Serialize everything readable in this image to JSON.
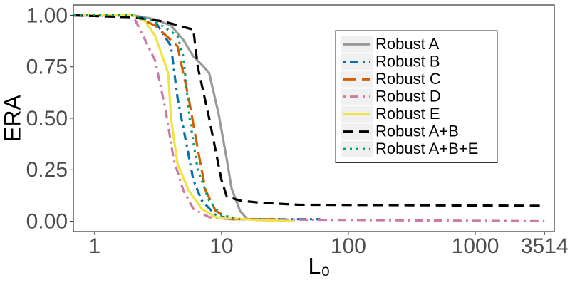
{
  "chart_data": {
    "type": "line",
    "ylabel": "ERA",
    "xlabel": "L₀",
    "xscale": "log",
    "xlim": [
      0.68,
      4200
    ],
    "ylim": [
      -0.05,
      1.05
    ],
    "xticks": [
      1,
      10,
      100,
      1000,
      3514
    ],
    "yticks": [
      {
        "value": 0,
        "label": "0.00"
      },
      {
        "value": 0.25,
        "label": "0.25"
      },
      {
        "value": 0.5,
        "label": "0.50"
      },
      {
        "value": 0.75,
        "label": "0.75"
      },
      {
        "value": 1,
        "label": "1.00"
      }
    ],
    "grid": false,
    "legend": "top-right",
    "series": [
      {
        "name": "Robust A",
        "color": "#999999",
        "dash": "solid",
        "x": [
          0.68,
          2,
          3,
          4,
          5,
          6,
          7,
          8,
          9.5,
          11,
          12,
          14,
          16,
          20
        ],
        "values": [
          1,
          1,
          0.98,
          0.95,
          0.88,
          0.8,
          0.76,
          0.72,
          0.52,
          0.3,
          0.16,
          0.05,
          0.01,
          0.01
        ]
      },
      {
        "name": "Robust B",
        "color": "#0072B2",
        "dash": "dotdash",
        "x": [
          0.68,
          2,
          3,
          4,
          4.5,
          5.2,
          6,
          7,
          9,
          12,
          60
        ],
        "values": [
          1,
          1,
          0.97,
          0.85,
          0.6,
          0.4,
          0.2,
          0.1,
          0.03,
          0.01,
          0.01
        ]
      },
      {
        "name": "Robust C",
        "color": "#D55E00",
        "dash": "longdash",
        "x": [
          0.68,
          2,
          3,
          4.5,
          5.5,
          6.5,
          7.5,
          9,
          12,
          30
        ],
        "values": [
          1,
          1,
          0.95,
          0.85,
          0.6,
          0.35,
          0.15,
          0.05,
          0.01,
          0.01
        ]
      },
      {
        "name": "Robust D",
        "color": "#CC79A7",
        "dash": "dotdash",
        "x": [
          0.68,
          2,
          2.5,
          3,
          3.6,
          4.2,
          5,
          6,
          8,
          12,
          3514
        ],
        "values": [
          1,
          1,
          0.88,
          0.78,
          0.55,
          0.3,
          0.15,
          0.06,
          0.02,
          0.01,
          0
        ]
      },
      {
        "name": "Robust E",
        "color": "#F0E442",
        "dash": "solid",
        "x": [
          0.68,
          2,
          2.5,
          3,
          3.8,
          4,
          4.5,
          5.5,
          7,
          9,
          20,
          37
        ],
        "values": [
          1,
          1,
          0.97,
          0.9,
          0.72,
          0.5,
          0.28,
          0.15,
          0.06,
          0.02,
          0.005,
          0
        ]
      },
      {
        "name": "Robust A+B",
        "color": "#000000",
        "dash": "dashed",
        "x": [
          0.68,
          2,
          3.5,
          6,
          6.5,
          8,
          10,
          11,
          14,
          20,
          40,
          3514
        ],
        "values": [
          1,
          0.99,
          0.97,
          0.93,
          0.75,
          0.5,
          0.2,
          0.12,
          0.1,
          0.09,
          0.08,
          0.075
        ]
      },
      {
        "name": "Robust A+B+E",
        "color": "#009E73",
        "dash": "dotted",
        "x": [
          0.68,
          2,
          3,
          4.5,
          5,
          5.6,
          6.5,
          8,
          10,
          14
        ],
        "values": [
          1,
          1,
          0.97,
          0.9,
          0.8,
          0.5,
          0.25,
          0.1,
          0.03,
          0.01
        ]
      }
    ]
  }
}
